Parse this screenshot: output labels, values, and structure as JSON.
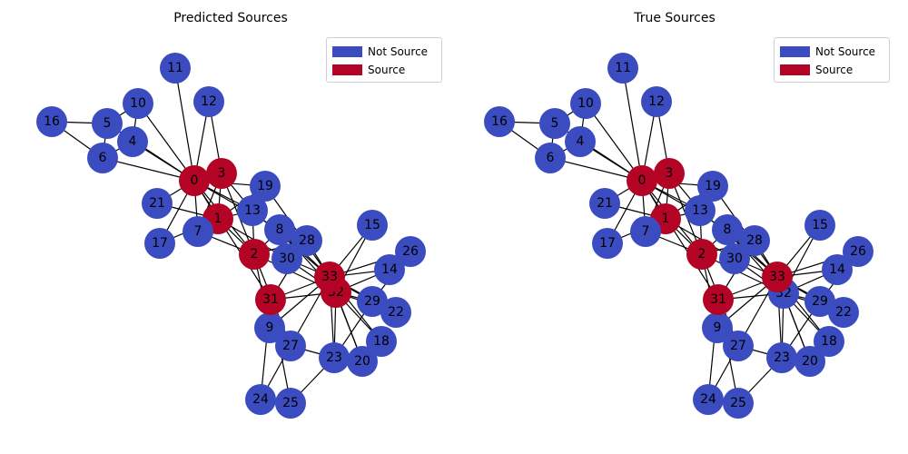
{
  "colors": {
    "not_source": "#3b4cc0",
    "source": "#b40426",
    "edge": "#000000"
  },
  "legend": [
    {
      "label": "Not Source",
      "color": "#3b4cc0"
    },
    {
      "label": "Source",
      "color": "#b40426"
    }
  ],
  "panels": [
    {
      "title": "Predicted Sources",
      "sources": [
        0,
        1,
        2,
        3,
        31,
        32,
        33
      ]
    },
    {
      "title": "True Sources",
      "sources": [
        0,
        1,
        2,
        3,
        31,
        33
      ]
    }
  ],
  "nodes": [
    "0",
    "1",
    "2",
    "3",
    "4",
    "5",
    "6",
    "7",
    "8",
    "9",
    "10",
    "11",
    "12",
    "13",
    "14",
    "15",
    "16",
    "17",
    "18",
    "19",
    "20",
    "21",
    "22",
    "23",
    "24",
    "25",
    "26",
    "27",
    "28",
    "29",
    "30",
    "31",
    "32",
    "33"
  ],
  "edges": [
    [
      0,
      1
    ],
    [
      0,
      2
    ],
    [
      0,
      3
    ],
    [
      0,
      4
    ],
    [
      0,
      5
    ],
    [
      0,
      6
    ],
    [
      0,
      7
    ],
    [
      0,
      8
    ],
    [
      0,
      10
    ],
    [
      0,
      11
    ],
    [
      0,
      12
    ],
    [
      0,
      13
    ],
    [
      0,
      17
    ],
    [
      0,
      19
    ],
    [
      0,
      21
    ],
    [
      0,
      31
    ],
    [
      1,
      2
    ],
    [
      1,
      3
    ],
    [
      1,
      7
    ],
    [
      1,
      13
    ],
    [
      1,
      17
    ],
    [
      1,
      19
    ],
    [
      1,
      21
    ],
    [
      1,
      30
    ],
    [
      2,
      3
    ],
    [
      2,
      7
    ],
    [
      2,
      8
    ],
    [
      2,
      9
    ],
    [
      2,
      13
    ],
    [
      2,
      27
    ],
    [
      2,
      28
    ],
    [
      2,
      32
    ],
    [
      3,
      7
    ],
    [
      3,
      12
    ],
    [
      3,
      13
    ],
    [
      4,
      6
    ],
    [
      4,
      10
    ],
    [
      5,
      6
    ],
    [
      5,
      10
    ],
    [
      5,
      16
    ],
    [
      6,
      16
    ],
    [
      8,
      30
    ],
    [
      8,
      32
    ],
    [
      8,
      33
    ],
    [
      9,
      33
    ],
    [
      13,
      33
    ],
    [
      14,
      32
    ],
    [
      14,
      33
    ],
    [
      15,
      32
    ],
    [
      15,
      33
    ],
    [
      18,
      32
    ],
    [
      18,
      33
    ],
    [
      19,
      33
    ],
    [
      20,
      32
    ],
    [
      20,
      33
    ],
    [
      22,
      32
    ],
    [
      22,
      33
    ],
    [
      23,
      25
    ],
    [
      23,
      27
    ],
    [
      23,
      29
    ],
    [
      23,
      32
    ],
    [
      23,
      33
    ],
    [
      24,
      25
    ],
    [
      24,
      27
    ],
    [
      24,
      31
    ],
    [
      25,
      31
    ],
    [
      26,
      29
    ],
    [
      26,
      33
    ],
    [
      27,
      33
    ],
    [
      28,
      31
    ],
    [
      28,
      33
    ],
    [
      29,
      32
    ],
    [
      29,
      33
    ],
    [
      30,
      32
    ],
    [
      30,
      33
    ],
    [
      31,
      32
    ],
    [
      31,
      33
    ],
    [
      32,
      33
    ]
  ]
}
